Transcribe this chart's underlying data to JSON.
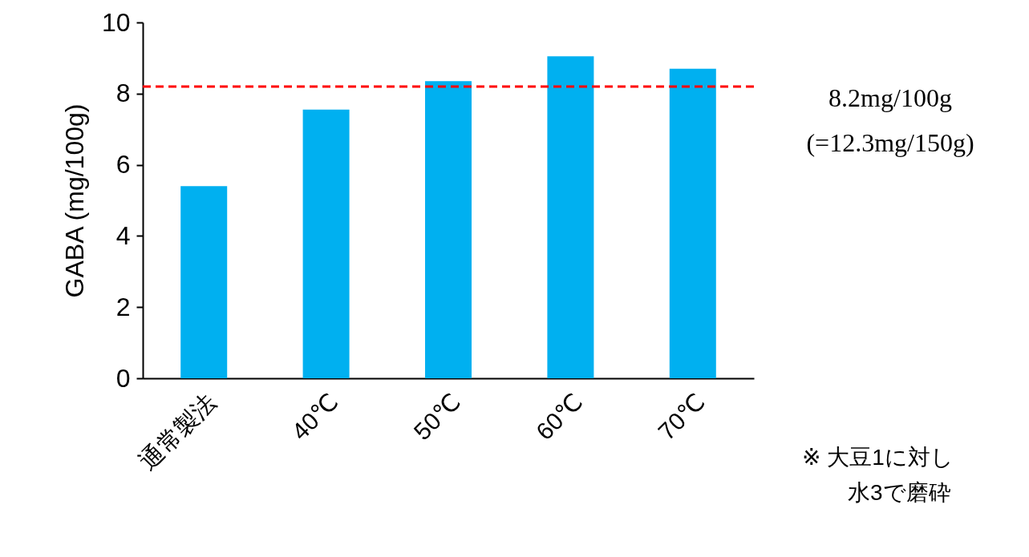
{
  "chart_data": {
    "type": "bar",
    "ylabel": "GABA (mg/100g)",
    "categories": [
      "通常製法",
      "40℃",
      "50℃",
      "60℃",
      "70℃"
    ],
    "values": [
      5.4,
      7.55,
      8.35,
      9.05,
      8.7
    ],
    "color": "#00b0f0",
    "ylim": [
      0,
      10
    ],
    "yticks": [
      0,
      2,
      4,
      6,
      8,
      10
    ],
    "grid": false,
    "ref_lines": [
      {
        "axis": "y",
        "value": 8.2,
        "label": "8.2mg/100g\n(=12.3mg/150g)",
        "color": "#ff0000",
        "line_style": "dashed"
      }
    ],
    "annotations": [
      "※ 大豆1に対し",
      "水3で磨砕"
    ]
  }
}
